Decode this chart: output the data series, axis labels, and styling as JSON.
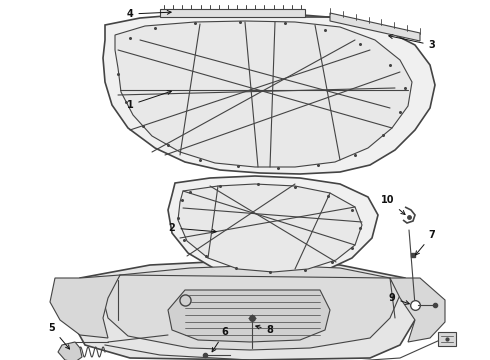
{
  "bg_color": "#ffffff",
  "line_color": "#444444",
  "fill_color": "#f5f5f5",
  "fill_inner": "#ececec",
  "fill_body": "#e8e8e8",
  "figsize": [
    4.9,
    3.6
  ],
  "dpi": 100,
  "label_fs": 7
}
